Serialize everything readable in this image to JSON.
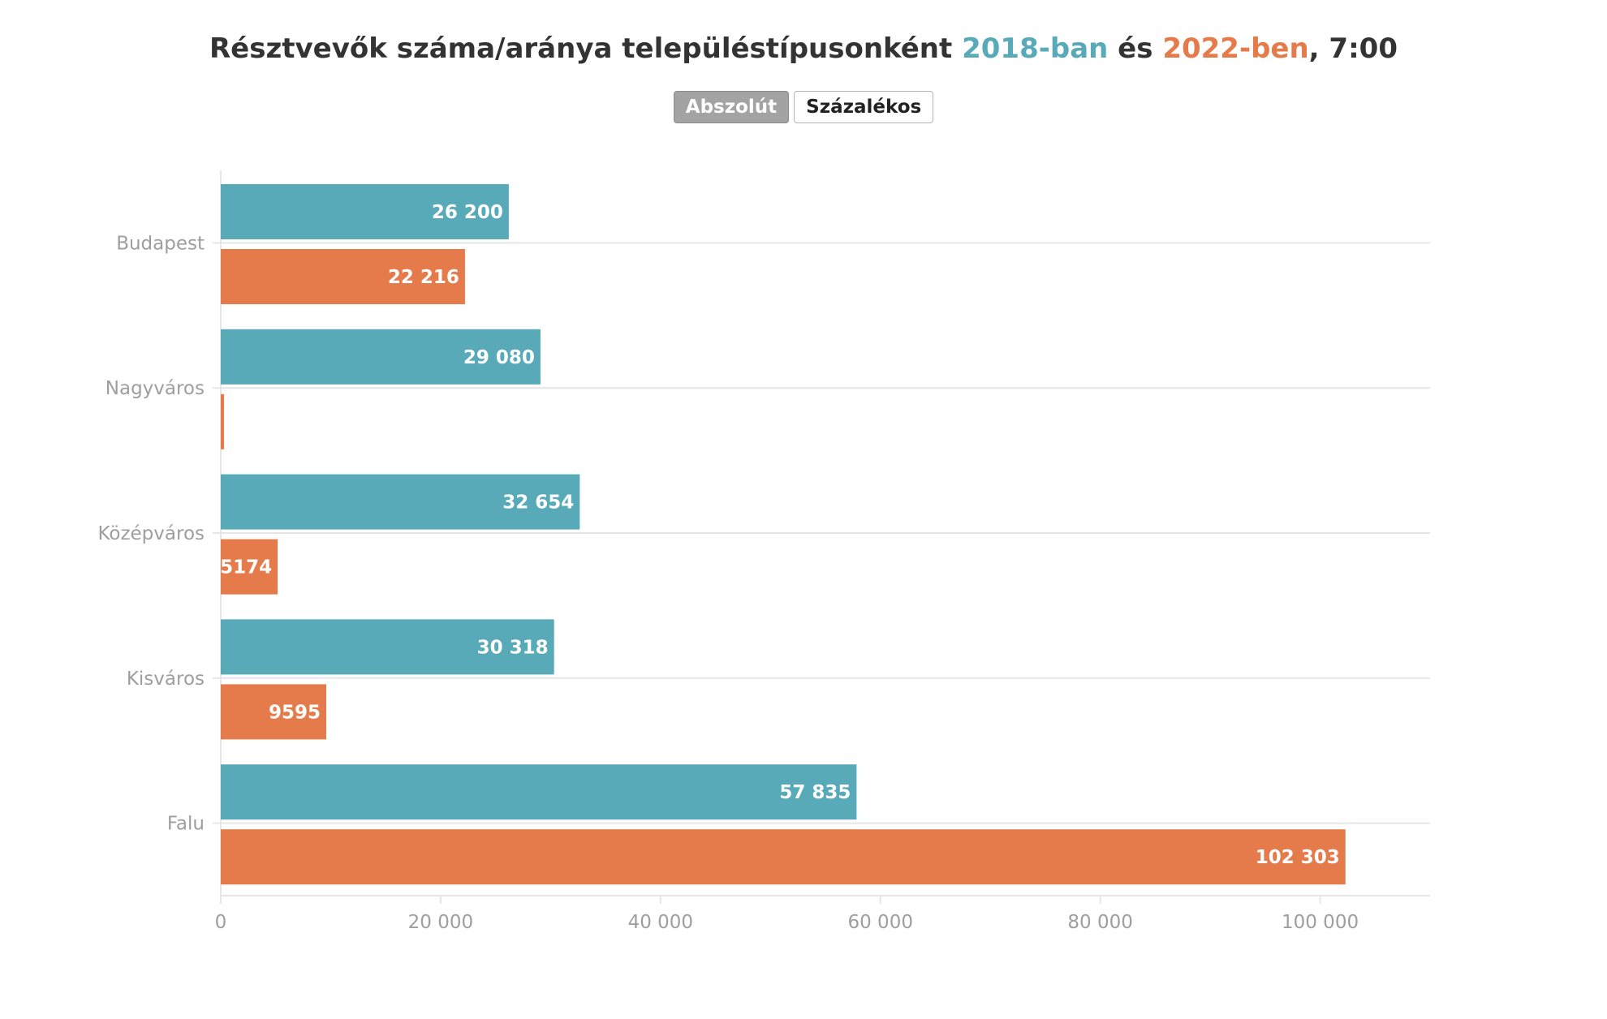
{
  "title": {
    "prefix": "Résztvevők száma/aránya településtípusonként ",
    "year1": "2018-ban",
    "middle": " és ",
    "year2": "2022-ben",
    "suffix": ", 7:00"
  },
  "toggle": {
    "absolute_label": "Abszolút",
    "percent_label": "Százalékos",
    "selected": "Abszolút"
  },
  "colors": {
    "series_2018": "#58aab9",
    "series_2022": "#e57b4b",
    "grid": "#e6e6e6",
    "axis_text": "#9e9e9e"
  },
  "chart_data": {
    "type": "bar",
    "orientation": "horizontal",
    "categories": [
      "Budapest",
      "Nagyváros",
      "Középváros",
      "Kisváros",
      "Falu"
    ],
    "series": [
      {
        "name": "2018-ban",
        "values": [
          26200,
          29080,
          32654,
          30318,
          57835
        ],
        "labels": [
          "26 200",
          "29 080",
          "32 654",
          "30 318",
          "57 835"
        ]
      },
      {
        "name": "2022-ben",
        "values": [
          22216,
          300,
          5174,
          9595,
          102303
        ],
        "labels": [
          "22 216",
          "",
          "5174",
          "9595",
          "102 303"
        ]
      }
    ],
    "xlim": [
      0,
      110000
    ],
    "xticks": [
      0,
      20000,
      40000,
      60000,
      80000,
      100000
    ],
    "xtick_labels": [
      "0",
      "20 000",
      "40 000",
      "60 000",
      "80 000",
      "100 000"
    ],
    "xlabel": "",
    "ylabel": "",
    "grid": true,
    "legend": "in title"
  }
}
